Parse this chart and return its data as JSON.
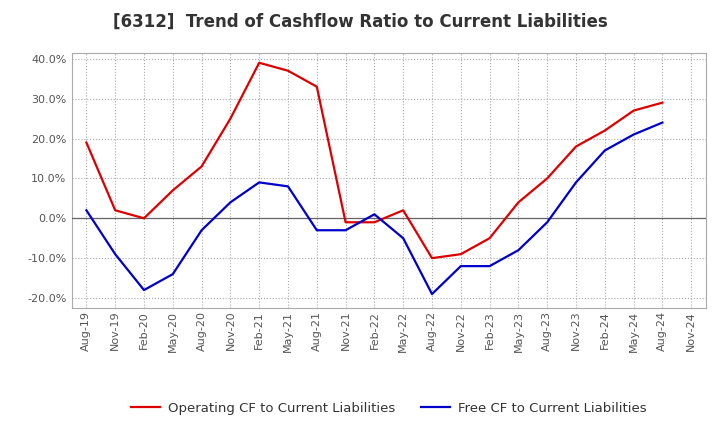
{
  "title": "[6312]  Trend of Cashflow Ratio to Current Liabilities",
  "x_labels": [
    "Aug-19",
    "Nov-19",
    "Feb-20",
    "May-20",
    "Aug-20",
    "Nov-20",
    "Feb-21",
    "May-21",
    "Aug-21",
    "Nov-21",
    "Feb-22",
    "May-22",
    "Aug-22",
    "Nov-22",
    "Feb-23",
    "May-23",
    "Aug-23",
    "Nov-23",
    "Feb-24",
    "May-24",
    "Aug-24",
    "Nov-24"
  ],
  "operating_cf": [
    0.19,
    0.02,
    0.0,
    0.07,
    0.13,
    0.25,
    0.39,
    0.37,
    0.33,
    -0.01,
    -0.01,
    0.02,
    -0.1,
    -0.09,
    -0.05,
    0.04,
    0.1,
    0.18,
    0.22,
    0.27,
    0.29,
    null
  ],
  "free_cf": [
    0.02,
    -0.09,
    -0.18,
    -0.14,
    -0.03,
    0.04,
    0.09,
    0.08,
    -0.03,
    -0.03,
    0.01,
    -0.05,
    -0.19,
    -0.12,
    -0.12,
    -0.08,
    -0.01,
    0.09,
    0.17,
    0.21,
    0.24,
    null
  ],
  "ylim": [
    -0.225,
    0.415
  ],
  "yticks": [
    -0.2,
    -0.1,
    0.0,
    0.1,
    0.2,
    0.3,
    0.4
  ],
  "operating_color": "#dd0000",
  "free_color": "#0000cc",
  "background_color": "#ffffff",
  "grid_color": "#aaaaaa",
  "title_fontsize": 12,
  "tick_fontsize": 8,
  "legend_fontsize": 9.5
}
